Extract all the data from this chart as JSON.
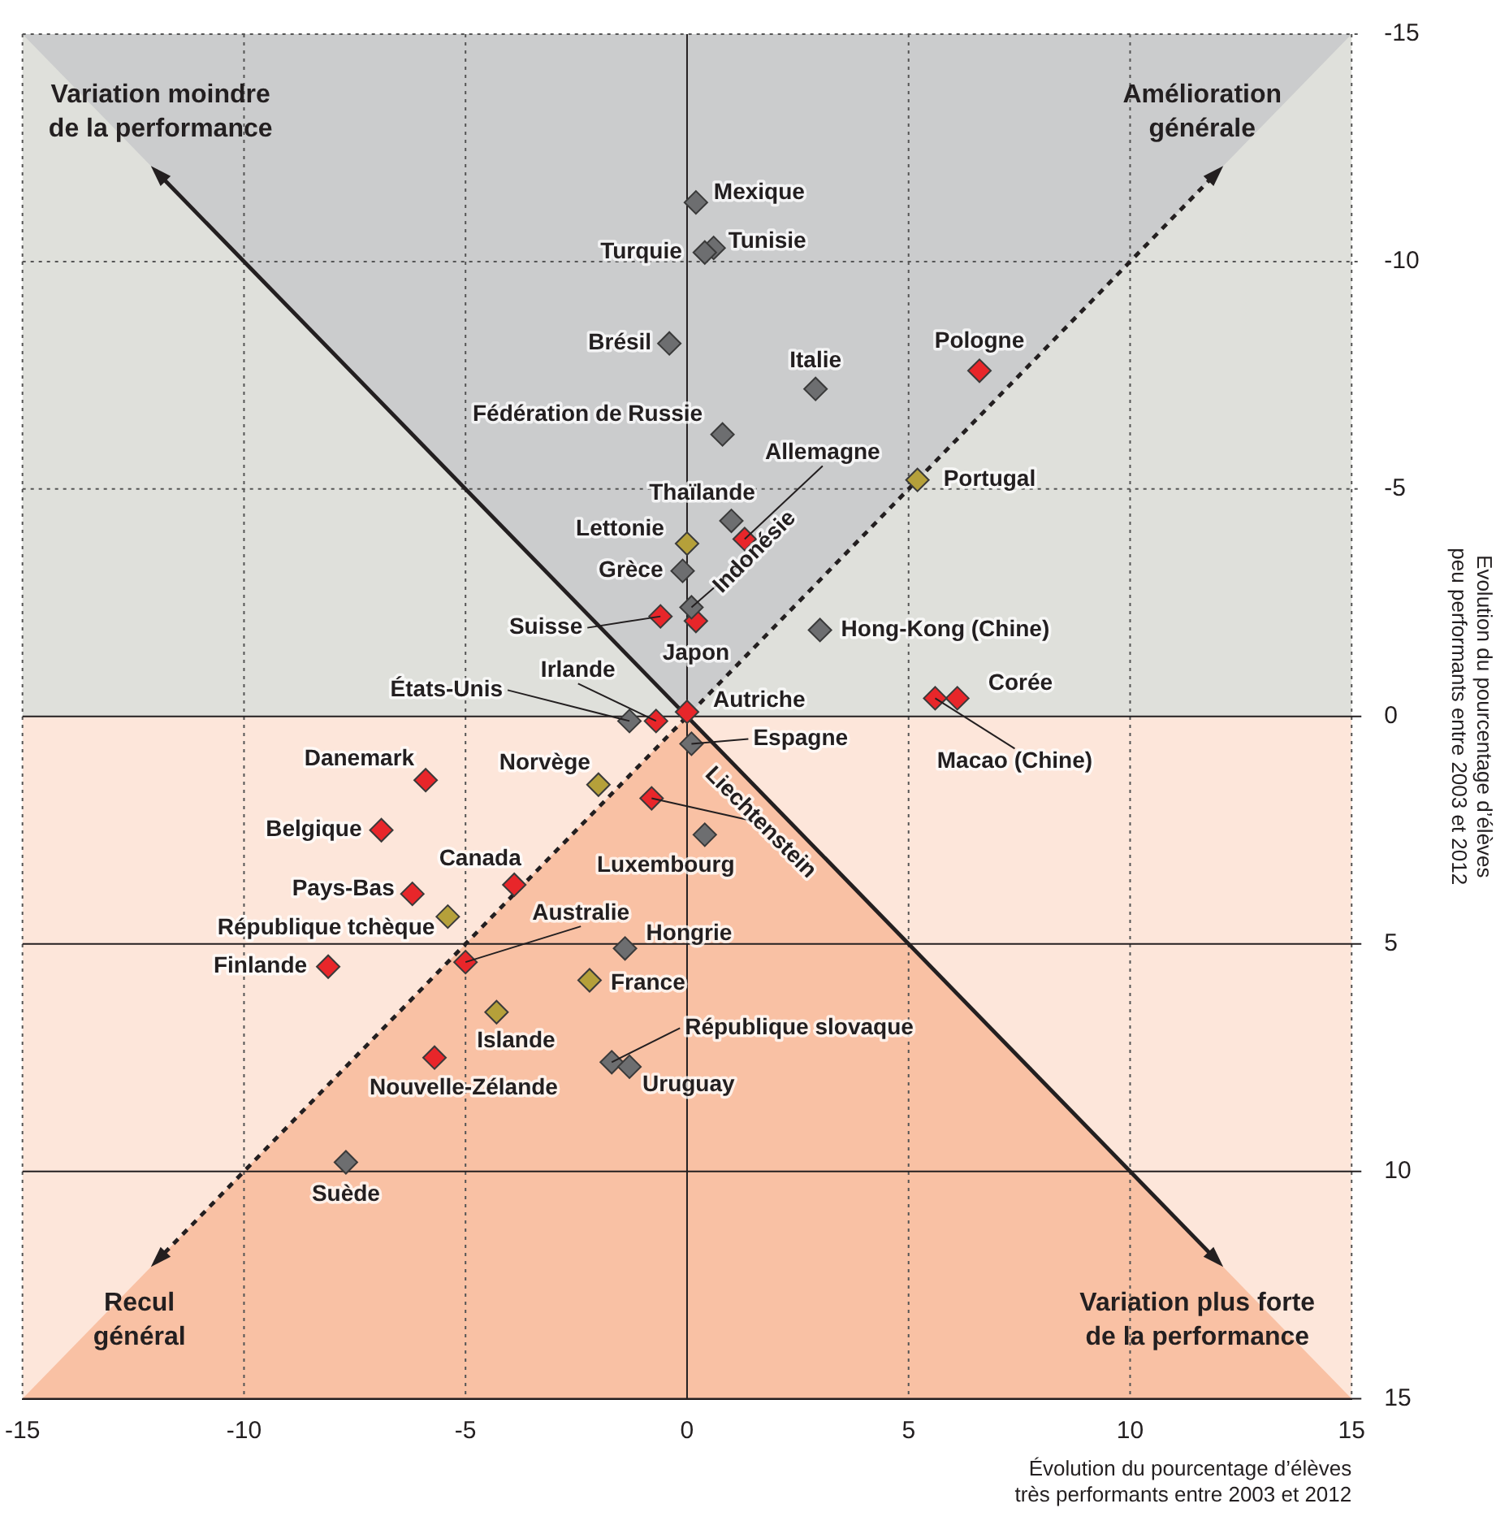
{
  "chart_data": {
    "type": "scatter",
    "xlabel": "Évolution du pourcentage d’élèves\ntrès performants entre 2003 et 2012",
    "ylabel": "Evolution du pourcentage d’élèves\npeu performants entre 2003 et 2012",
    "xlim": [
      -15,
      15
    ],
    "xticks": [
      -15,
      -10,
      -5,
      0,
      5,
      10,
      15
    ],
    "ylim": [
      15,
      -15
    ],
    "yticks": [
      -15,
      -10,
      -5,
      0,
      5,
      10,
      15
    ],
    "grid": true,
    "legend": false,
    "marker": "diamond",
    "bands": [
      {
        "axis": "y",
        "from": -15,
        "to": 0,
        "color": "#dfe0db"
      },
      {
        "axis": "y",
        "from": 0,
        "to": 15,
        "color": "#fde6da"
      }
    ],
    "series": [
      {
        "type": "line",
        "color": "#231f20",
        "line_style": "solid",
        "marker": "triangle",
        "x": [
          -12,
          12
        ],
        "values": [
          -12,
          12
        ]
      },
      {
        "type": "line",
        "color": "#231f20",
        "line_style": "dashed",
        "marker": "triangle",
        "x": [
          -12,
          12
        ],
        "values": [
          12,
          -12
        ]
      },
      {
        "color": "#6d6e70",
        "x": [
          0.2,
          0.6,
          0.4,
          -0.4,
          2.9,
          0.8,
          1.0,
          -0.1,
          0.1,
          3.0,
          -1.3,
          0.1,
          0.4,
          -1.4,
          -1.7,
          -1.3,
          -7.7
        ],
        "values": [
          -11.3,
          -10.3,
          -10.2,
          -8.2,
          -7.2,
          -6.2,
          -4.3,
          -3.2,
          -2.4,
          -1.9,
          0.1,
          0.6,
          2.6,
          5.1,
          7.6,
          7.7,
          9.8
        ]
      },
      {
        "color": "#e8262a",
        "x": [
          6.6,
          1.3,
          -0.6,
          0.2,
          6.1,
          5.6,
          -0.7,
          0,
          -5.9,
          -0.8,
          -6.9,
          -3.9,
          -6.2,
          -5.0,
          -8.1,
          -5.7
        ],
        "values": [
          -7.6,
          -3.9,
          -2.2,
          -2.1,
          -0.4,
          -0.4,
          0.1,
          -0.1,
          1.4,
          1.8,
          2.5,
          3.7,
          3.9,
          5.4,
          5.5,
          7.5
        ]
      },
      {
        "color": "#b5a03a",
        "x": [
          5.2,
          0,
          -2.0,
          -5.4,
          -2.2,
          -4.3
        ],
        "values": [
          -5.2,
          -3.8,
          1.5,
          4.4,
          5.8,
          6.5
        ]
      }
    ],
    "annotations": [
      {
        "text": "Mexique",
        "x": 0.2,
        "y": -11.3
      },
      {
        "text": "Tunisie",
        "x": 0.6,
        "y": -10.3
      },
      {
        "text": "Turquie",
        "x": 0.4,
        "y": -10.2
      },
      {
        "text": "Brésil",
        "x": -0.4,
        "y": -8.2
      },
      {
        "text": "Italie",
        "x": 2.9,
        "y": -7.2
      },
      {
        "text": "Pologne",
        "x": 6.6,
        "y": -7.6
      },
      {
        "text": "Fédération de Russie",
        "x": 0.8,
        "y": -6.2
      },
      {
        "text": "Portugal",
        "x": 5.2,
        "y": -5.2
      },
      {
        "text": "Allemagne",
        "x": 1.3,
        "y": -3.9
      },
      {
        "text": "Thaïlande",
        "x": 1.0,
        "y": -4.3
      },
      {
        "text": "Lettonie",
        "x": 0,
        "y": -3.8
      },
      {
        "text": "Grèce",
        "x": -0.1,
        "y": -3.2
      },
      {
        "text": "Indonésie",
        "x": 0.1,
        "y": -2.4
      },
      {
        "text": "Suisse",
        "x": -0.6,
        "y": -2.2
      },
      {
        "text": "Japon",
        "x": 0.2,
        "y": -2.1
      },
      {
        "text": "Hong-Kong (Chine)",
        "x": 3.0,
        "y": -1.9
      },
      {
        "text": "Corée",
        "x": 6.1,
        "y": -0.4
      },
      {
        "text": "Macao (Chine)",
        "x": 5.6,
        "y": -0.4
      },
      {
        "text": "États-Unis",
        "x": -1.3,
        "y": 0.1
      },
      {
        "text": "Irlande",
        "x": -0.7,
        "y": 0.1
      },
      {
        "text": "Autriche",
        "x": 0,
        "y": -0.1
      },
      {
        "text": "Espagne",
        "x": 0.1,
        "y": 0.6
      },
      {
        "text": "Danemark",
        "x": -5.9,
        "y": 1.4
      },
      {
        "text": "Norvège",
        "x": -2.0,
        "y": 1.5
      },
      {
        "text": "Liechtenstein",
        "x": -0.8,
        "y": 1.8
      },
      {
        "text": "Belgique",
        "x": -6.9,
        "y": 2.5
      },
      {
        "text": "Luxembourg",
        "x": 0.4,
        "y": 2.6
      },
      {
        "text": "Canada",
        "x": -3.9,
        "y": 3.7
      },
      {
        "text": "Pays-Bas",
        "x": -6.2,
        "y": 3.9
      },
      {
        "text": "République tchèque",
        "x": -5.4,
        "y": 4.4
      },
      {
        "text": "Hongrie",
        "x": -1.4,
        "y": 5.1
      },
      {
        "text": "Australie",
        "x": -5.0,
        "y": 5.4
      },
      {
        "text": "Finlande",
        "x": -8.1,
        "y": 5.5
      },
      {
        "text": "France",
        "x": -2.2,
        "y": 5.8
      },
      {
        "text": "Islande",
        "x": -4.3,
        "y": 6.5
      },
      {
        "text": "Nouvelle-Zélande",
        "x": -5.7,
        "y": 7.5
      },
      {
        "text": "République slovaque",
        "x": -1.7,
        "y": 7.6
      },
      {
        "text": "Uruguay",
        "x": -1.3,
        "y": 7.7
      },
      {
        "text": "Suède",
        "x": -7.7,
        "y": 9.8
      },
      "Variation moindre\nde la performance",
      "Amélioration\ngénérale",
      "Recul\ngénéral",
      "Variation plus forte\nde la performance"
    ]
  }
}
